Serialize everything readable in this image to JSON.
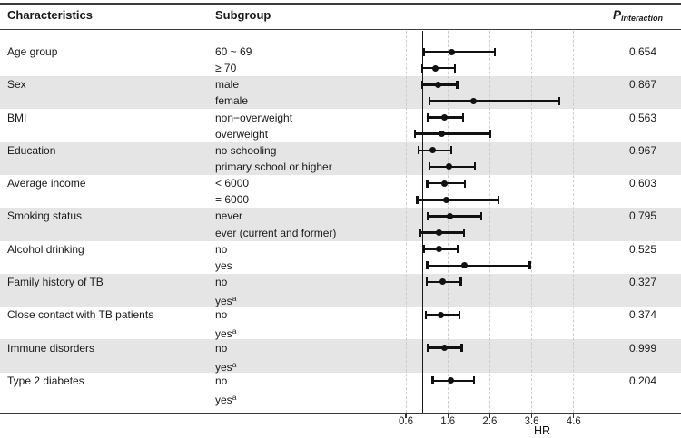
{
  "figure": {
    "header": {
      "characteristics": "Characteristics",
      "subgroup": "Subgroup",
      "p_main": "P",
      "p_sub": "interaction"
    },
    "colors": {
      "band": "#e5e5e5",
      "gridline": "#cccccc",
      "marker": "#111111",
      "rule": "#3d3d3d",
      "reference_line": "#1a1a1a"
    }
  },
  "chart_data": {
    "type": "forest",
    "xlabel": "HR",
    "x_ticks": [
      "0.6",
      "1.6",
      "2.6",
      "3.6",
      "4.6"
    ],
    "x_range": [
      0.6,
      5.6
    ],
    "reference_line": 1.0,
    "grid": "dashed-vertical",
    "groups": [
      {
        "characteristic": "Age group",
        "p_interaction": "0.654",
        "subgroups": [
          {
            "label": "60 ~ 69",
            "hr": 1.69,
            "ci_low": 1.03,
            "ci_high": 2.72
          },
          {
            "label": "≥ 70",
            "hr": 1.31,
            "ci_low": 0.99,
            "ci_high": 1.77
          }
        ]
      },
      {
        "characteristic": "Sex",
        "p_interaction": "0.867",
        "subgroups": [
          {
            "label": "male",
            "hr": 1.36,
            "ci_low": 0.99,
            "ci_high": 1.82
          },
          {
            "label": "female",
            "hr": 2.22,
            "ci_low": 1.16,
            "ci_high": 4.25
          }
        ]
      },
      {
        "characteristic": "BMI",
        "p_interaction": "0.563",
        "subgroups": [
          {
            "label": "non−overweight",
            "hr": 1.51,
            "ci_low": 1.13,
            "ci_high": 1.96
          },
          {
            "label": "overweight",
            "hr": 1.46,
            "ci_low": 0.82,
            "ci_high": 2.61
          }
        ]
      },
      {
        "characteristic": "Education",
        "p_interaction": "0.967",
        "subgroups": [
          {
            "label": "no schooling",
            "hr": 1.24,
            "ci_low": 0.9,
            "ci_high": 1.68
          },
          {
            "label": "primary school or higher",
            "hr": 1.62,
            "ci_low": 1.16,
            "ci_high": 2.24
          }
        ]
      },
      {
        "characteristic": "Average income",
        "p_interaction": "0.603",
        "subgroups": [
          {
            "label": "< 6000",
            "hr": 1.51,
            "ci_low": 1.11,
            "ci_high": 2.01
          },
          {
            "label": "= 6000",
            "hr": 1.57,
            "ci_low": 0.87,
            "ci_high": 2.81
          }
        ]
      },
      {
        "characteristic": "Smoking status",
        "p_interaction": "0.795",
        "subgroups": [
          {
            "label": "never",
            "hr": 1.66,
            "ci_low": 1.13,
            "ci_high": 2.4
          },
          {
            "label": "ever (current and former)",
            "hr": 1.39,
            "ci_low": 0.94,
            "ci_high": 1.99
          }
        ]
      },
      {
        "characteristic": "Alcohol drinking",
        "p_interaction": "0.525",
        "subgroups": [
          {
            "label": "no",
            "hr": 1.39,
            "ci_low": 1.03,
            "ci_high": 1.84
          },
          {
            "label": "yes",
            "hr": 2.0,
            "ci_low": 1.11,
            "ci_high": 3.55
          }
        ]
      },
      {
        "characteristic": "Family history of TB",
        "p_interaction": "0.327",
        "subgroups": [
          {
            "label": "no",
            "hr": 1.48,
            "ci_low": 1.1,
            "ci_high": 1.91
          },
          {
            "label": "yes",
            "sup": "a",
            "hr": null,
            "ci_low": null,
            "ci_high": null
          }
        ]
      },
      {
        "characteristic": "Close contact with TB patients",
        "p_interaction": "0.374",
        "subgroups": [
          {
            "label": "no",
            "hr": 1.44,
            "ci_low": 1.08,
            "ci_high": 1.88
          },
          {
            "label": "yes",
            "sup": "a",
            "hr": null,
            "ci_low": null,
            "ci_high": null
          }
        ]
      },
      {
        "characteristic": "Immune disorders",
        "p_interaction": "0.999",
        "subgroups": [
          {
            "label": "no",
            "hr": 1.51,
            "ci_low": 1.13,
            "ci_high": 1.93
          },
          {
            "label": "yes",
            "sup": "a",
            "hr": null,
            "ci_low": null,
            "ci_high": null
          }
        ]
      },
      {
        "characteristic": "Type 2 diabetes",
        "p_interaction": "0.204",
        "subgroups": [
          {
            "label": "no",
            "hr": 1.67,
            "ci_low": 1.24,
            "ci_high": 2.22
          },
          {
            "label": "yes",
            "sup": "a",
            "hr": null,
            "ci_low": null,
            "ci_high": null
          }
        ]
      }
    ]
  }
}
